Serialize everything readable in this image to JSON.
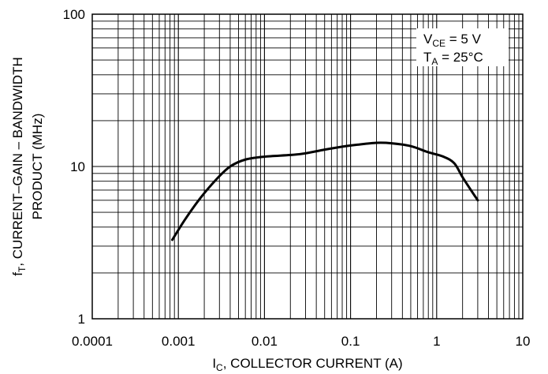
{
  "chart_data": {
    "type": "line",
    "xscale": "log",
    "yscale": "log",
    "xlim": [
      0.0001,
      10
    ],
    "ylim": [
      1,
      100
    ],
    "x_ticks": [
      "0.0001",
      "0.001",
      "0.01",
      "0.1",
      "1",
      "10"
    ],
    "x_tick_values": [
      0.0001,
      0.001,
      0.01,
      0.1,
      1,
      10
    ],
    "y_ticks": [
      "1",
      "10",
      "100"
    ],
    "y_tick_values": [
      1,
      10,
      100
    ],
    "xlabel": {
      "main": "I",
      "sub": "C",
      "rest": ", COLLECTOR CURRENT (A)"
    },
    "ylabel": {
      "line1_main": "f",
      "line1_sub": "T",
      "line1_rest": ", CURRENT–GAIN – BANDWIDTH",
      "line2": "PRODUCT (MHz)"
    },
    "annotations": [
      {
        "main": "V",
        "sub": "CE",
        "rest": " = 5 V"
      },
      {
        "main": "T",
        "sub": "A",
        "rest": " = 25°C"
      }
    ],
    "grid": true,
    "series": [
      {
        "color": "#000000",
        "x": [
          0.00085,
          0.0012,
          0.0018,
          0.0028,
          0.004,
          0.006,
          0.01,
          0.02,
          0.03,
          0.05,
          0.08,
          0.12,
          0.2,
          0.3,
          0.5,
          0.8,
          1.2,
          1.6,
          2.0,
          2.5,
          3.0
        ],
        "y": [
          3.3,
          4.5,
          6.2,
          8.3,
          10.0,
          11.1,
          11.6,
          11.9,
          12.2,
          12.9,
          13.5,
          13.9,
          14.3,
          14.2,
          13.6,
          12.4,
          11.6,
          10.5,
          8.5,
          7.0,
          6.0
        ]
      }
    ]
  }
}
